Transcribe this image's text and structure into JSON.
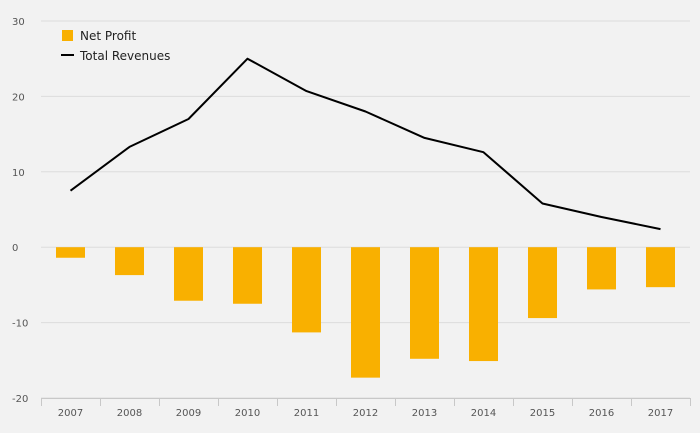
{
  "chart_data": {
    "type": "bar",
    "title": "",
    "xlabel": "",
    "ylabel": "",
    "categories": [
      "2007",
      "2008",
      "2009",
      "2010",
      "2011",
      "2012",
      "2013",
      "2014",
      "2015",
      "2016",
      "2017"
    ],
    "ylim": [
      -20,
      30
    ],
    "yticks": [
      30,
      20,
      10,
      0,
      -10,
      -20
    ],
    "grid": true,
    "legend_position": "top-left",
    "series": [
      {
        "name": "Net Profit",
        "type": "bar",
        "color": "#f9b000",
        "values": [
          -1.4,
          -3.7,
          -7.1,
          -7.5,
          -11.3,
          -17.3,
          -14.8,
          -15.1,
          -9.4,
          -5.6,
          -5.3
        ]
      },
      {
        "name": "Total Revenues",
        "type": "line",
        "color": "#000000",
        "values": [
          7.5,
          13.3,
          17.0,
          25.0,
          20.7,
          18.0,
          14.5,
          12.6,
          5.8,
          4.0,
          2.4
        ]
      }
    ]
  }
}
